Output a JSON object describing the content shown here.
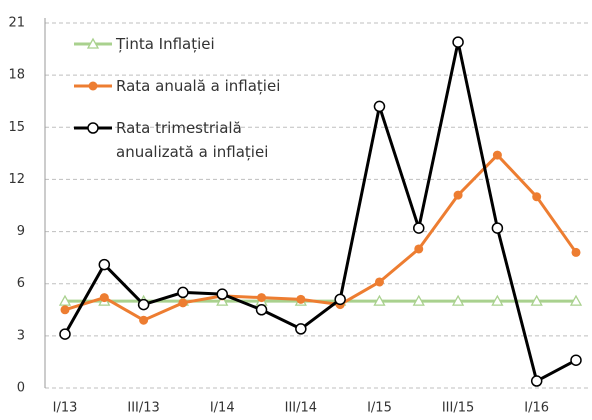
{
  "chart_data": {
    "type": "line",
    "categories": [
      "I/13",
      null,
      "III/13",
      null,
      "I/14",
      null,
      "III/14",
      null,
      "I/15",
      null,
      "III/15",
      null,
      "I/16",
      null
    ],
    "series": [
      {
        "name": "Ținta Inflației",
        "color": "#a9d18e",
        "marker": "triangle",
        "values": [
          5,
          5,
          5,
          5,
          5,
          5,
          5,
          5,
          5,
          5,
          5,
          5,
          5,
          5
        ]
      },
      {
        "name": "Rata anuală a inflației",
        "color": "#ed7d31",
        "marker": "circle",
        "values": [
          4.5,
          5.2,
          3.9,
          4.9,
          5.3,
          5.2,
          5.1,
          4.8,
          6.1,
          8.0,
          11.1,
          13.4,
          11.0,
          7.8
        ]
      },
      {
        "name": "Rata trimestrială anualizată a inflației",
        "color": "#000000",
        "marker": "open-circle",
        "values": [
          3.1,
          7.1,
          4.8,
          5.5,
          5.4,
          4.5,
          3.4,
          5.1,
          16.2,
          9.2,
          19.9,
          9.2,
          0.4,
          1.6
        ]
      }
    ],
    "ylim": [
      0,
      21
    ],
    "yticks": [
      0,
      3,
      6,
      9,
      12,
      15,
      18,
      21
    ],
    "grid": true,
    "legend": "upper left"
  }
}
